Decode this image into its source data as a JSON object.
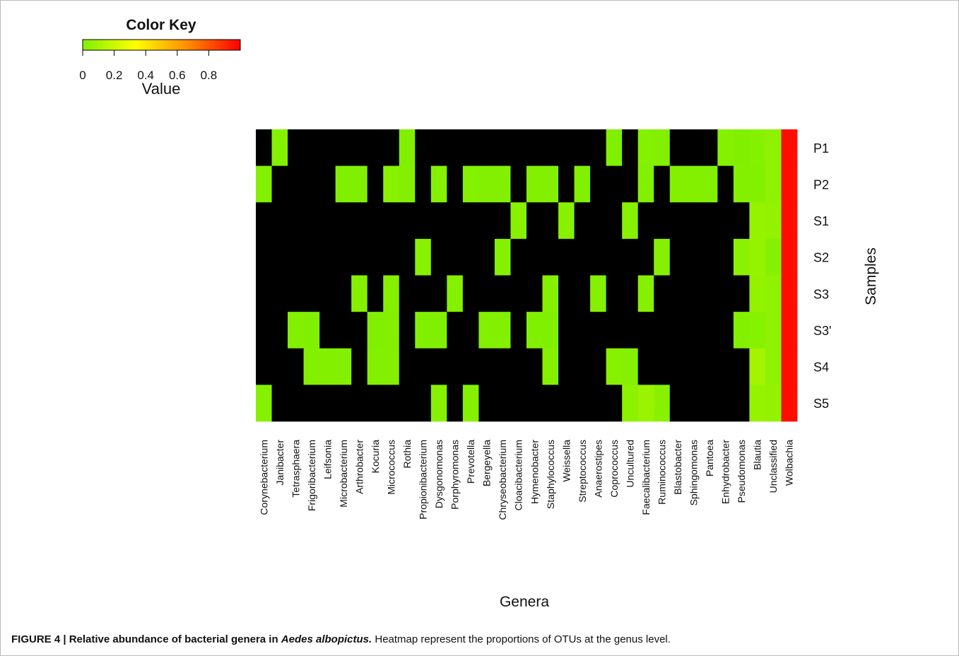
{
  "caption": {
    "prefix": "FIGURE 4 | Relative abundance of bacterial genera in ",
    "species": "Aedes albopictus.",
    "text": " Heatmap represent the proportions of OTUs at the genus level."
  },
  "chart_data": {
    "type": "heatmap",
    "xlabel": "Genera",
    "ylabel": "Samples",
    "color_key": {
      "title": "Color Key",
      "label": "Value",
      "ticks": [
        "0",
        "0.2",
        "0.4",
        "0.6",
        "0.8"
      ],
      "range": [
        0,
        1
      ],
      "colors": [
        "#7ff000",
        "#ffff00",
        "#ff8c00",
        "#ff0000"
      ]
    },
    "zero_color": "#000000",
    "rows": [
      "P1",
      "P2",
      "S1",
      "S2",
      "S3",
      "S3'",
      "S4",
      "S5"
    ],
    "columns": [
      "Corynebacterium",
      "Janibacter",
      "Tetrasphaera",
      "Frigoribacterium",
      "Leifsonia",
      "Microbacterium",
      "Arthrobacter",
      "Kocuria",
      "Micrococcus",
      "Rothia",
      "Propionibacterium",
      "Dysgonomonas",
      "Porphyromonas",
      "Prevotella",
      "Bergeyella",
      "Chryseobacterium",
      "Cloacibacterium",
      "Hymenobacter",
      "Staphylococcus",
      "Weissella",
      "Streptococcus",
      "Anaerostipes",
      "Coprococcus",
      "Uncultured",
      "Faecalibacterium",
      "Ruminococcus",
      "Blastobacter",
      "Sphingomonas",
      "Pantoea",
      "Enhydrobacter",
      "Pseudomonas",
      "Blautia",
      "Unclassified",
      "Wolbachia"
    ],
    "values": [
      [
        0,
        0.012,
        0,
        0,
        0,
        0,
        0,
        0,
        0,
        0.006,
        0,
        0,
        0,
        0,
        0,
        0,
        0,
        0,
        0,
        0,
        0,
        0,
        0.006,
        0,
        0.012,
        0.008,
        0,
        0,
        0,
        0.012,
        0.006,
        0.015,
        0.04,
        0.97
      ],
      [
        0.01,
        0,
        0,
        0,
        0,
        0.005,
        0.005,
        0,
        0.02,
        0.008,
        0,
        0.015,
        0,
        0.012,
        0.008,
        0.008,
        0,
        0.01,
        0.008,
        0,
        0.008,
        0,
        0,
        0,
        0.008,
        0,
        0.01,
        0.01,
        0.01,
        0,
        0.01,
        0.01,
        0.04,
        0.97
      ],
      [
        0,
        0,
        0,
        0,
        0,
        0,
        0,
        0,
        0,
        0,
        0,
        0,
        0,
        0,
        0,
        0,
        0.02,
        0,
        0,
        0.02,
        0,
        0,
        0,
        0.02,
        0,
        0,
        0,
        0,
        0,
        0,
        0,
        0.06,
        0.05,
        0.97
      ],
      [
        0,
        0,
        0,
        0,
        0,
        0,
        0,
        0,
        0,
        0,
        0.02,
        0,
        0,
        0,
        0,
        0.015,
        0,
        0,
        0,
        0,
        0,
        0,
        0,
        0,
        0,
        0.015,
        0,
        0,
        0,
        0,
        0.03,
        0.06,
        0.015,
        0.97
      ],
      [
        0,
        0,
        0,
        0,
        0,
        0,
        0.015,
        0,
        0.015,
        0,
        0,
        0,
        0.015,
        0,
        0,
        0,
        0,
        0,
        0.015,
        0,
        0,
        0.015,
        0,
        0,
        0.015,
        0,
        0,
        0,
        0,
        0,
        0,
        0.05,
        0.04,
        0.97
      ],
      [
        0,
        0,
        0.008,
        0.006,
        0,
        0,
        0,
        0.004,
        0.01,
        0,
        0.005,
        0.005,
        0,
        0,
        0.008,
        0.008,
        0,
        0.005,
        0.006,
        0,
        0,
        0,
        0,
        0,
        0,
        0,
        0,
        0,
        0,
        0,
        0.01,
        0.018,
        0.04,
        0.97
      ],
      [
        0,
        0,
        0,
        0.01,
        0.01,
        0.01,
        0,
        0.01,
        0.01,
        0,
        0,
        0,
        0,
        0,
        0,
        0,
        0,
        0,
        0.015,
        0,
        0,
        0,
        0.02,
        0.015,
        0,
        0,
        0,
        0,
        0,
        0,
        0,
        0.09,
        0.04,
        0.97
      ],
      [
        0.015,
        0,
        0,
        0,
        0,
        0,
        0,
        0,
        0,
        0,
        0,
        0.018,
        0,
        0.015,
        0,
        0,
        0,
        0,
        0,
        0,
        0,
        0,
        0,
        0.035,
        0.07,
        0.025,
        0,
        0,
        0,
        0,
        0,
        0.06,
        0.05,
        0.97
      ]
    ]
  }
}
